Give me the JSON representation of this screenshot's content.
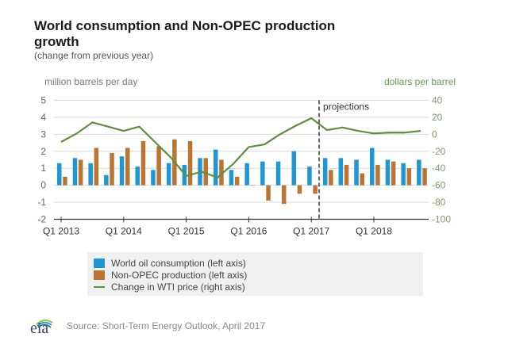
{
  "title": "World consumption and Non-OPEC production growth",
  "subtitle": "(change from previous year)",
  "left_axis_unit": "million barrels per day",
  "right_axis_unit": "dollars per barrel",
  "projection_label": "projections",
  "legend": [
    {
      "label": "World oil consumption (left axis)",
      "color": "#1f97d4"
    },
    {
      "label": "Non-OPEC production (left axis)",
      "color": "#bb7532"
    },
    {
      "label": "Change in WTI price (right axis)",
      "color": "#5f8f3e"
    }
  ],
  "source": "Source: Short-Term Energy Outlook, April 2017",
  "logo_text": "eia",
  "chart_data": {
    "type": "bar",
    "title": "World consumption and Non-OPEC production growth",
    "subtitle": "(change from previous year)",
    "categories": [
      "Q1 2013",
      "Q2 2013",
      "Q3 2013",
      "Q4 2013",
      "Q1 2014",
      "Q2 2014",
      "Q3 2014",
      "Q4 2014",
      "Q1 2015",
      "Q2 2015",
      "Q3 2015",
      "Q4 2015",
      "Q1 2016",
      "Q2 2016",
      "Q3 2016",
      "Q4 2016",
      "Q1 2017",
      "Q2 2017",
      "Q3 2017",
      "Q4 2017",
      "Q1 2018",
      "Q2 2018",
      "Q3 2018",
      "Q4 2018"
    ],
    "x_tick_labels": [
      "Q1 2013",
      "Q1 2014",
      "Q1 2015",
      "Q1 2016",
      "Q1 2017",
      "Q1 2018"
    ],
    "series": [
      {
        "name": "World oil consumption (left axis)",
        "type": "bar",
        "axis": "left",
        "color": "#1f97d4",
        "values": [
          1.3,
          1.6,
          1.3,
          0.6,
          1.7,
          1.1,
          0.9,
          1.3,
          1.2,
          1.6,
          2.1,
          0.9,
          1.3,
          1.4,
          1.4,
          2.0,
          1.1,
          1.6,
          1.6,
          1.5,
          2.2,
          1.5,
          1.3,
          1.5
        ]
      },
      {
        "name": "Non-OPEC production (left axis)",
        "type": "bar",
        "axis": "left",
        "color": "#bb7532",
        "values": [
          0.5,
          1.5,
          2.2,
          1.9,
          2.2,
          2.6,
          2.3,
          2.7,
          2.6,
          1.6,
          1.5,
          0.5,
          0.0,
          -0.9,
          -1.1,
          -0.5,
          -0.5,
          0.9,
          1.2,
          0.7,
          1.2,
          1.4,
          1.0,
          1.0
        ]
      },
      {
        "name": "Change in WTI price (right axis)",
        "type": "line",
        "axis": "right",
        "color": "#5f8f3e",
        "values": [
          -9,
          1,
          14,
          9,
          4,
          9,
          -9,
          -27,
          -49,
          -44,
          -51,
          -35,
          -15,
          -12,
          0,
          10,
          19,
          5,
          8,
          4,
          1,
          2,
          2,
          4
        ]
      }
    ],
    "ylabel_left": "million barrels per day",
    "ylabel_right": "dollars per barrel",
    "ylim_left": [
      -2,
      5
    ],
    "ylim_right": [
      -100,
      40
    ],
    "yticks_left": [
      5,
      4,
      3,
      2,
      1,
      0,
      -1,
      -2
    ],
    "yticks_right": [
      40,
      20,
      0,
      -20,
      -40,
      -60,
      -80,
      -100
    ],
    "projection_start": "Q2 2017",
    "grid": true,
    "legend_position": "bottom"
  }
}
